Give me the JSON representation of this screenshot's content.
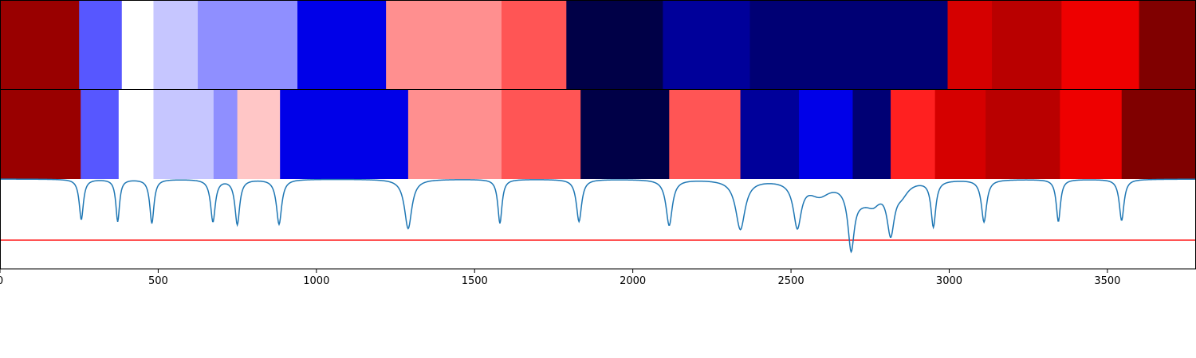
{
  "chart_data": {
    "type": "heatmap",
    "xlim": [
      0,
      3780
    ],
    "x_ticks": [
      "0",
      "500",
      "1000",
      "1500",
      "2000",
      "2500",
      "3000",
      "3500"
    ],
    "x_tick_values": [
      0,
      500,
      1000,
      1500,
      2000,
      2500,
      3000,
      3500
    ],
    "colormap": "seismic",
    "band_rows": [
      {
        "segments": [
          {
            "start": 0,
            "end": 250,
            "color": "#990000"
          },
          {
            "start": 250,
            "end": 385,
            "color": "#5757ff"
          },
          {
            "start": 385,
            "end": 485,
            "color": "#ffffff"
          },
          {
            "start": 485,
            "end": 625,
            "color": "#c6c6ff"
          },
          {
            "start": 625,
            "end": 940,
            "color": "#8f8fff"
          },
          {
            "start": 940,
            "end": 1220,
            "color": "#0000e8"
          },
          {
            "start": 1220,
            "end": 1585,
            "color": "#ff8f8f"
          },
          {
            "start": 1585,
            "end": 1790,
            "color": "#ff5555"
          },
          {
            "start": 1790,
            "end": 2095,
            "color": "#000047"
          },
          {
            "start": 2095,
            "end": 2370,
            "color": "#00009a"
          },
          {
            "start": 2370,
            "end": 2995,
            "color": "#000074"
          },
          {
            "start": 2995,
            "end": 3135,
            "color": "#d50000"
          },
          {
            "start": 3135,
            "end": 3355,
            "color": "#b90000"
          },
          {
            "start": 3355,
            "end": 3600,
            "color": "#ee0000"
          },
          {
            "start": 3600,
            "end": 3780,
            "color": "#800000"
          }
        ]
      },
      {
        "segments": [
          {
            "start": 0,
            "end": 255,
            "color": "#990000"
          },
          {
            "start": 255,
            "end": 375,
            "color": "#5757ff"
          },
          {
            "start": 375,
            "end": 485,
            "color": "#ffffff"
          },
          {
            "start": 485,
            "end": 675,
            "color": "#c6c6ff"
          },
          {
            "start": 675,
            "end": 750,
            "color": "#8f8fff"
          },
          {
            "start": 750,
            "end": 885,
            "color": "#ffc6c6"
          },
          {
            "start": 885,
            "end": 1290,
            "color": "#0000e8"
          },
          {
            "start": 1290,
            "end": 1585,
            "color": "#ff8f8f"
          },
          {
            "start": 1585,
            "end": 1835,
            "color": "#ff5555"
          },
          {
            "start": 1835,
            "end": 2115,
            "color": "#000047"
          },
          {
            "start": 2115,
            "end": 2340,
            "color": "#ff5555"
          },
          {
            "start": 2340,
            "end": 2525,
            "color": "#00009a"
          },
          {
            "start": 2525,
            "end": 2695,
            "color": "#0000e8"
          },
          {
            "start": 2695,
            "end": 2815,
            "color": "#000074"
          },
          {
            "start": 2815,
            "end": 2955,
            "color": "#ff2020"
          },
          {
            "start": 2955,
            "end": 3115,
            "color": "#d50000"
          },
          {
            "start": 3115,
            "end": 3350,
            "color": "#b90000"
          },
          {
            "start": 3350,
            "end": 3545,
            "color": "#ee0000"
          },
          {
            "start": 3545,
            "end": 3780,
            "color": "#800000"
          }
        ]
      }
    ],
    "spectrum": {
      "color": "#1f77b4",
      "y_range": [
        0,
        1
      ],
      "baseline": 1.0,
      "dips": [
        {
          "center": 257,
          "depth": 0.45,
          "width": 8
        },
        {
          "center": 372,
          "depth": 0.47,
          "width": 7
        },
        {
          "center": 480,
          "depth": 0.49,
          "width": 8
        },
        {
          "center": 673,
          "depth": 0.47,
          "width": 9
        },
        {
          "center": 750,
          "depth": 0.5,
          "width": 9
        },
        {
          "center": 882,
          "depth": 0.5,
          "width": 10
        },
        {
          "center": 1290,
          "depth": 0.55,
          "width": 14
        },
        {
          "center": 1580,
          "depth": 0.49,
          "width": 8
        },
        {
          "center": 1830,
          "depth": 0.47,
          "width": 10
        },
        {
          "center": 2115,
          "depth": 0.51,
          "width": 12
        },
        {
          "center": 2340,
          "depth": 0.55,
          "width": 18
        },
        {
          "center": 2520,
          "depth": 0.5,
          "width": 15
        },
        {
          "center": 2690,
          "depth": 0.65,
          "width": 12
        },
        {
          "center": 2815,
          "depth": 0.53,
          "width": 14
        },
        {
          "center": 2950,
          "depth": 0.51,
          "width": 9
        },
        {
          "center": 3110,
          "depth": 0.47,
          "width": 10
        },
        {
          "center": 3345,
          "depth": 0.47,
          "width": 8
        },
        {
          "center": 3545,
          "depth": 0.46,
          "width": 9
        }
      ],
      "broad_features": [
        {
          "center": 2590,
          "depth": 0.15,
          "width": 40
        },
        {
          "center": 2720,
          "depth": 0.15,
          "width": 40
        },
        {
          "center": 2760,
          "depth": 0.18,
          "width": 30
        },
        {
          "center": 2850,
          "depth": 0.12,
          "width": 25
        }
      ]
    },
    "reference_line": {
      "y": 0.32,
      "color": "#ff0000"
    }
  },
  "colors": {
    "axis": "#000000",
    "background": "#ffffff"
  }
}
